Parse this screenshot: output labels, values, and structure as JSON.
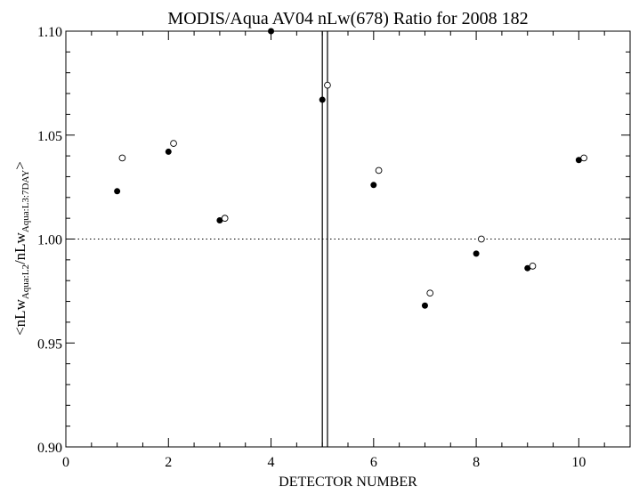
{
  "chart_data": {
    "type": "scatter",
    "title": "MODIS/Aqua AV04 nLw(678) Ratio for 2008 182",
    "xlabel": "DETECTOR NUMBER",
    "ylabel": {
      "prefix": "<nLw",
      "sub1": "Aqua:L2",
      "mid": "/nLw",
      "sub2": "Aqua:L3:7DAY",
      "suffix": ">"
    },
    "xlim": [
      0,
      11
    ],
    "ylim": [
      0.9,
      1.1
    ],
    "x_ticks": [
      {
        "value": 0,
        "label": "0"
      },
      {
        "value": 2,
        "label": "2"
      },
      {
        "value": 4,
        "label": "4"
      },
      {
        "value": 6,
        "label": "6"
      },
      {
        "value": 8,
        "label": "8"
      },
      {
        "value": 10,
        "label": "10"
      }
    ],
    "y_ticks": [
      {
        "value": 0.9,
        "label": "0.90"
      },
      {
        "value": 0.95,
        "label": "0.95"
      },
      {
        "value": 1.0,
        "label": "1.00"
      },
      {
        "value": 1.05,
        "label": "1.05"
      },
      {
        "value": 1.1,
        "label": "1.10"
      }
    ],
    "reference_line": {
      "y": 1.0,
      "style": "dotted"
    },
    "vertical_lines": [
      5.0,
      5.1
    ],
    "series": [
      {
        "marker": "filled-circle",
        "points": [
          {
            "x": 1,
            "y": 1.023
          },
          {
            "x": 2,
            "y": 1.042
          },
          {
            "x": 3,
            "y": 1.009
          },
          {
            "x": 4,
            "y": 1.1
          },
          {
            "x": 5,
            "y": 1.067
          },
          {
            "x": 6,
            "y": 1.026
          },
          {
            "x": 7,
            "y": 0.968
          },
          {
            "x": 8,
            "y": 0.993
          },
          {
            "x": 9,
            "y": 0.986
          },
          {
            "x": 10,
            "y": 1.038
          }
        ]
      },
      {
        "marker": "open-circle",
        "points": [
          {
            "x": 1.1,
            "y": 1.039
          },
          {
            "x": 2.1,
            "y": 1.046
          },
          {
            "x": 3.1,
            "y": 1.01
          },
          {
            "x": 5.1,
            "y": 1.074
          },
          {
            "x": 6.1,
            "y": 1.033
          },
          {
            "x": 7.1,
            "y": 0.974
          },
          {
            "x": 8.1,
            "y": 1.0
          },
          {
            "x": 9.1,
            "y": 0.987
          },
          {
            "x": 10.1,
            "y": 1.039
          }
        ]
      }
    ],
    "grid": false,
    "legend": "none"
  }
}
